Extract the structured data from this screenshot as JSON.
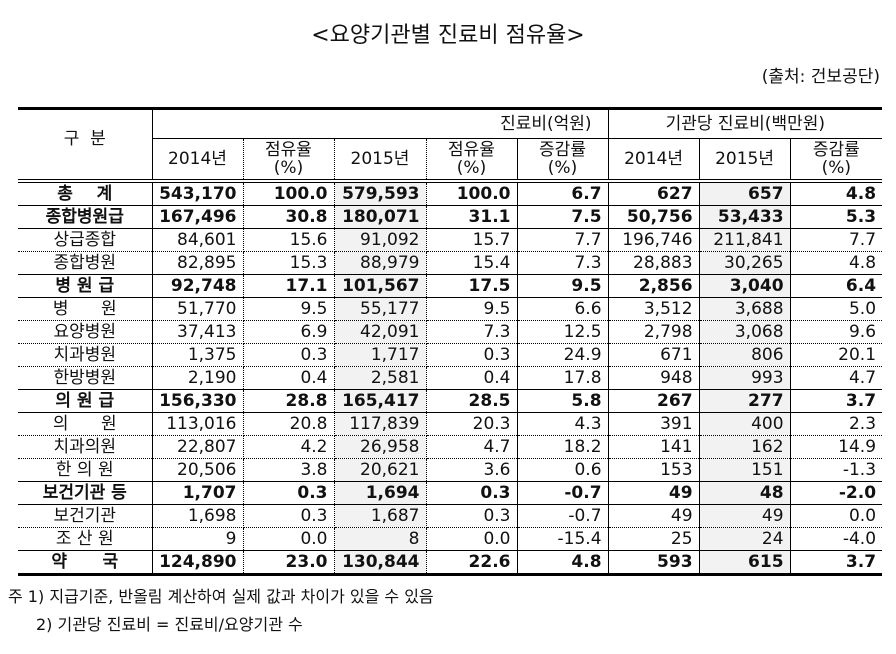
{
  "title": "<요양기관별 진료비 점유율>",
  "source": "(출처: 건보공단)",
  "header": {
    "category": "구  분",
    "group1": "진료비(억원)",
    "group2": "기관당 진료비(백만원)",
    "cols": [
      "2014년",
      "점유율\n(%)",
      "2015년",
      "점유율\n(%)",
      "증감률\n(%)",
      "2014년",
      "2015년",
      "증감률\n(%)"
    ]
  },
  "rows": [
    {
      "label": "총    계",
      "group": true,
      "values": [
        "543,170",
        "100.0",
        "579,593",
        "100.0",
        "6.7",
        "627",
        "657",
        "4.8"
      ]
    },
    {
      "label": "종합병원급",
      "group": true,
      "values": [
        "167,496",
        "30.8",
        "180,071",
        "31.1",
        "7.5",
        "50,756",
        "53,433",
        "5.3"
      ]
    },
    {
      "label": "상급종합",
      "group": false,
      "values": [
        "84,601",
        "15.6",
        "91,092",
        "15.7",
        "7.7",
        "196,746",
        "211,841",
        "7.7"
      ]
    },
    {
      "label": "종합병원",
      "group": false,
      "values": [
        "82,895",
        "15.3",
        "88,979",
        "15.4",
        "7.3",
        "28,883",
        "30,265",
        "4.8"
      ]
    },
    {
      "label": "병 원 급",
      "group": true,
      "values": [
        "92,748",
        "17.1",
        "101,567",
        "17.5",
        "9.5",
        "2,856",
        "3,040",
        "6.4"
      ]
    },
    {
      "label": "병      원",
      "group": false,
      "values": [
        "51,770",
        "9.5",
        "55,177",
        "9.5",
        "6.6",
        "3,512",
        "3,688",
        "5.0"
      ]
    },
    {
      "label": "요양병원",
      "group": false,
      "values": [
        "37,413",
        "6.9",
        "42,091",
        "7.3",
        "12.5",
        "2,798",
        "3,068",
        "9.6"
      ]
    },
    {
      "label": "치과병원",
      "group": false,
      "values": [
        "1,375",
        "0.3",
        "1,717",
        "0.3",
        "24.9",
        "671",
        "806",
        "20.1"
      ]
    },
    {
      "label": "한방병원",
      "group": false,
      "values": [
        "2,190",
        "0.4",
        "2,581",
        "0.4",
        "17.8",
        "948",
        "993",
        "4.7"
      ]
    },
    {
      "label": "의 원 급",
      "group": true,
      "values": [
        "156,330",
        "28.8",
        "165,417",
        "28.5",
        "5.8",
        "267",
        "277",
        "3.7"
      ]
    },
    {
      "label": "의      원",
      "group": false,
      "values": [
        "113,016",
        "20.8",
        "117,839",
        "20.3",
        "4.3",
        "391",
        "400",
        "2.3"
      ]
    },
    {
      "label": "치과의원",
      "group": false,
      "values": [
        "22,807",
        "4.2",
        "26,958",
        "4.7",
        "18.2",
        "141",
        "162",
        "14.9"
      ]
    },
    {
      "label": "한 의 원",
      "group": false,
      "values": [
        "20,506",
        "3.8",
        "20,621",
        "3.6",
        "0.6",
        "153",
        "151",
        "-1.3"
      ]
    },
    {
      "label": "보건기관 등",
      "group": true,
      "values": [
        "1,707",
        "0.3",
        "1,694",
        "0.3",
        "-0.7",
        "49",
        "48",
        "-2.0"
      ]
    },
    {
      "label": "보건기관",
      "group": false,
      "values": [
        "1,698",
        "0.3",
        "1,687",
        "0.3",
        "-0.7",
        "49",
        "49",
        "0.0"
      ]
    },
    {
      "label": "조 산 원",
      "group": false,
      "values": [
        "9",
        "0.0",
        "8",
        "0.0",
        "-15.4",
        "25",
        "24",
        "-4.0"
      ]
    },
    {
      "label": "약      국",
      "group": true,
      "values": [
        "124,890",
        "23.0",
        "130,844",
        "22.6",
        "4.8",
        "593",
        "615",
        "3.7"
      ]
    }
  ],
  "notes": [
    "주 1) 지급기준, 반올림 계산하여 실제 값과 차이가 있을 수 있음",
    "2) 기관당 진료비 = 진료비/요양기관 수"
  ]
}
